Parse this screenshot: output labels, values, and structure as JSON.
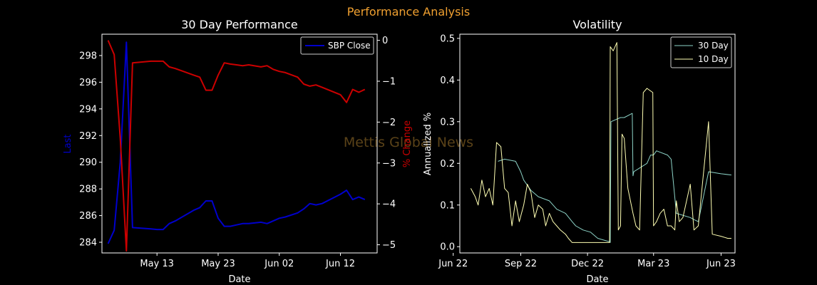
{
  "figure": {
    "suptitle": "Performance Analysis",
    "suptitle_color": "#f0a030",
    "watermark": "Mettis Global News",
    "watermark_color": "#5a4218"
  },
  "chart_data": [
    {
      "type": "line",
      "title": "30 Day Performance",
      "xlabel": "Date",
      "ylabel": "Last",
      "ylabel_color": "#0000cc",
      "y2label": "% Change",
      "y2label_color": "#cc0000",
      "x_ticks": [
        "May 13",
        "May 23",
        "Jun 02",
        "Jun 12"
      ],
      "y_ticks": [
        284,
        286,
        288,
        290,
        292,
        294,
        296,
        298
      ],
      "y2_ticks": [
        0,
        -1,
        -2,
        -3,
        -4,
        -5
      ],
      "xlim": [
        "2023-05-04",
        "2023-06-18"
      ],
      "ylim": [
        283.2,
        299.6
      ],
      "y2lim": [
        -5.2,
        0.15
      ],
      "legend": {
        "position": "top-right",
        "entries": [
          "SBP Close"
        ]
      },
      "series": [
        {
          "name": "SBP Close",
          "axis": "left",
          "color": "#0000cc",
          "x": [
            "2023-05-05",
            "2023-05-06",
            "2023-05-07",
            "2023-05-08",
            "2023-05-09",
            "2023-05-12",
            "2023-05-13",
            "2023-05-14",
            "2023-05-15",
            "2023-05-16",
            "2023-05-19",
            "2023-05-20",
            "2023-05-21",
            "2023-05-22",
            "2023-05-23",
            "2023-05-24",
            "2023-05-25",
            "2023-05-26",
            "2023-05-27",
            "2023-05-28",
            "2023-05-30",
            "2023-05-31",
            "2023-06-01",
            "2023-06-02",
            "2023-06-03",
            "2023-06-05",
            "2023-06-06",
            "2023-06-07",
            "2023-06-08",
            "2023-06-09",
            "2023-06-12",
            "2023-06-13",
            "2023-06-14",
            "2023-06-15",
            "2023-06-16"
          ],
          "y": [
            283.9,
            284.9,
            290.0,
            299.0,
            285.1,
            285.0,
            284.96,
            284.96,
            285.4,
            285.6,
            286.4,
            286.6,
            287.1,
            287.1,
            285.8,
            285.2,
            285.2,
            285.3,
            285.4,
            285.4,
            285.5,
            285.4,
            285.6,
            285.8,
            285.9,
            286.2,
            286.5,
            286.9,
            286.8,
            286.9,
            287.6,
            287.9,
            287.2,
            287.4,
            287.2
          ]
        },
        {
          "name": "% Change",
          "axis": "right",
          "color": "#cc0000",
          "x": [
            "2023-05-05",
            "2023-05-06",
            "2023-05-07",
            "2023-05-08",
            "2023-05-09",
            "2023-05-12",
            "2023-05-13",
            "2023-05-14",
            "2023-05-15",
            "2023-05-16",
            "2023-05-19",
            "2023-05-20",
            "2023-05-21",
            "2023-05-22",
            "2023-05-23",
            "2023-05-24",
            "2023-05-25",
            "2023-05-26",
            "2023-05-27",
            "2023-05-28",
            "2023-05-30",
            "2023-05-31",
            "2023-06-01",
            "2023-06-02",
            "2023-06-03",
            "2023-06-05",
            "2023-06-06",
            "2023-06-07",
            "2023-06-08",
            "2023-06-09",
            "2023-06-12",
            "2023-06-13",
            "2023-06-14",
            "2023-06-15",
            "2023-06-16"
          ],
          "y": [
            0.0,
            -0.35,
            -2.4,
            -5.15,
            -0.55,
            -0.51,
            -0.51,
            -0.51,
            -0.65,
            -0.69,
            -0.85,
            -0.9,
            -1.22,
            -1.22,
            -0.85,
            -0.55,
            -0.58,
            -0.6,
            -0.62,
            -0.6,
            -0.65,
            -0.62,
            -0.71,
            -0.76,
            -0.79,
            -0.9,
            -1.07,
            -1.12,
            -1.09,
            -1.15,
            -1.33,
            -1.52,
            -1.2,
            -1.27,
            -1.2
          ]
        }
      ]
    },
    {
      "type": "line",
      "title": "Volatility",
      "xlabel": "Date",
      "ylabel": "Annualized %",
      "x_ticks": [
        "Jun 22",
        "Sep 22",
        "Dec 22",
        "Mar 23",
        "Jun 23"
      ],
      "y_ticks": [
        0.0,
        0.1,
        0.2,
        0.3,
        0.4,
        0.5
      ],
      "xlim": [
        "2022-06-10",
        "2023-06-20"
      ],
      "ylim": [
        -0.015,
        0.51
      ],
      "legend": {
        "position": "top-right",
        "entries": [
          "30 Day",
          "10 Day"
        ]
      },
      "series": [
        {
          "name": "30 Day",
          "color": "#8dd3c7",
          "x": [
            "2022-08-01",
            "2022-08-10",
            "2022-08-25",
            "2022-09-01",
            "2022-09-05",
            "2022-09-15",
            "2022-09-25",
            "2022-10-10",
            "2022-10-20",
            "2022-11-01",
            "2022-11-10",
            "2022-11-15",
            "2022-11-25",
            "2022-12-05",
            "2022-12-15",
            "2022-12-25",
            "2022-12-31",
            "2023-01-01",
            "2023-01-02",
            "2023-01-15",
            "2023-01-20",
            "2023-01-31",
            "2023-02-01",
            "2023-02-02",
            "2023-02-20",
            "2023-02-25",
            "2023-03-01",
            "2023-03-05",
            "2023-03-20",
            "2023-03-25",
            "2023-04-01",
            "2023-04-20",
            "2023-04-25",
            "2023-05-01",
            "2023-05-15",
            "2023-06-01",
            "2023-06-15"
          ],
          "y": [
            0.205,
            0.21,
            0.205,
            0.18,
            0.16,
            0.135,
            0.12,
            0.11,
            0.09,
            0.08,
            0.06,
            0.05,
            0.04,
            0.035,
            0.02,
            0.015,
            0.012,
            0.01,
            0.3,
            0.31,
            0.31,
            0.32,
            0.17,
            0.18,
            0.2,
            0.22,
            0.22,
            0.23,
            0.22,
            0.21,
            0.08,
            0.07,
            0.065,
            0.06,
            0.18,
            0.175,
            0.172
          ]
        },
        {
          "name": "10 Day",
          "color": "#ffffb3",
          "x": [
            "2022-06-25",
            "2022-07-01",
            "2022-07-05",
            "2022-07-10",
            "2022-07-15",
            "2022-07-20",
            "2022-07-25",
            "2022-07-30",
            "2022-08-05",
            "2022-08-10",
            "2022-08-15",
            "2022-08-20",
            "2022-08-25",
            "2022-08-30",
            "2022-09-05",
            "2022-09-10",
            "2022-09-15",
            "2022-09-20",
            "2022-09-25",
            "2022-10-01",
            "2022-10-05",
            "2022-10-10",
            "2022-10-15",
            "2022-10-20",
            "2022-10-25",
            "2022-11-01",
            "2022-11-05",
            "2022-11-10",
            "2022-11-20",
            "2022-12-01",
            "2022-12-20",
            "2022-12-31",
            "2023-01-01",
            "2023-01-05",
            "2023-01-10",
            "2023-01-12",
            "2023-01-15",
            "2023-01-17",
            "2023-01-20",
            "2023-01-25",
            "2023-02-01",
            "2023-02-05",
            "2023-02-10",
            "2023-02-15",
            "2023-02-20",
            "2023-02-28",
            "2023-03-01",
            "2023-03-05",
            "2023-03-10",
            "2023-03-15",
            "2023-03-20",
            "2023-03-25",
            "2023-03-30",
            "2023-04-01",
            "2023-04-05",
            "2023-04-10",
            "2023-04-20",
            "2023-04-25",
            "2023-05-01",
            "2023-05-15",
            "2023-05-20",
            "2023-06-01",
            "2023-06-10",
            "2023-06-15"
          ],
          "y": [
            0.14,
            0.12,
            0.1,
            0.16,
            0.12,
            0.14,
            0.1,
            0.25,
            0.24,
            0.14,
            0.13,
            0.05,
            0.11,
            0.06,
            0.1,
            0.15,
            0.13,
            0.07,
            0.1,
            0.09,
            0.05,
            0.08,
            0.06,
            0.05,
            0.04,
            0.03,
            0.02,
            0.01,
            0.01,
            0.01,
            0.01,
            0.01,
            0.48,
            0.47,
            0.49,
            0.04,
            0.05,
            0.27,
            0.26,
            0.14,
            0.08,
            0.05,
            0.04,
            0.37,
            0.38,
            0.37,
            0.05,
            0.06,
            0.08,
            0.09,
            0.05,
            0.05,
            0.04,
            0.11,
            0.06,
            0.07,
            0.15,
            0.04,
            0.05,
            0.3,
            0.03,
            0.025,
            0.02,
            0.02
          ]
        }
      ]
    }
  ]
}
